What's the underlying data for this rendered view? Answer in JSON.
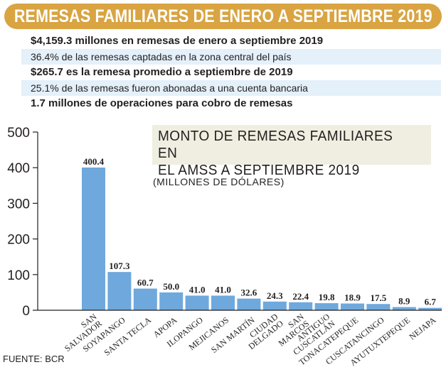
{
  "header": {
    "title": "REMESAS FAMILIARES DE ENERO A SEPTIEMBRE 2019",
    "facts": [
      {
        "text": "$4,159.3 millones en remesas de enero a septiembre 2019",
        "style": "bold"
      },
      {
        "text": "36.4% de las remesas captadas en la zona central del país",
        "style": "shaded"
      },
      {
        "text": "$265.7 es la remesa promedio a septiembre de 2019",
        "style": "bold"
      },
      {
        "text": "25.1% de las remesas fueron abonadas a una cuenta bancaria",
        "style": "shaded"
      },
      {
        "text": "1.7 millones de operaciones para cobro de remesas",
        "style": "bold"
      }
    ]
  },
  "chart_data": {
    "type": "bar",
    "title": "MONTO DE REMESAS FAMILIARES EN\nEL AMSS A SEPTIEMBRE 2019",
    "units": "(MILLONES DE DÓLARES)",
    "categories": [
      [
        "SAN",
        "SALVADOR"
      ],
      [
        "SOYAPANGO"
      ],
      [
        "SANTA TECLA"
      ],
      [
        "APOPA"
      ],
      [
        "ILOPANGO"
      ],
      [
        "MEJICANOS"
      ],
      [
        "SAN MARTÍN"
      ],
      [
        "CIUDAD",
        "DELGADO"
      ],
      [
        "SAN",
        "MARCOS"
      ],
      [
        "ANTIGUO",
        "CUSCATLÁN"
      ],
      [
        "TONACATEPEQUE"
      ],
      [
        "CUSCATANCINGO"
      ],
      [
        "AYUTUXTEPEQUE"
      ],
      [
        "NEJAPA"
      ]
    ],
    "values": [
      400.4,
      107.3,
      60.7,
      50.0,
      41.0,
      41.0,
      32.6,
      24.3,
      22.4,
      19.8,
      18.9,
      17.5,
      8.9,
      6.7
    ],
    "value_labels": [
      "400.4",
      "107.3",
      "60.7",
      "50.0",
      "41.0",
      "41.0",
      "32.6",
      "24.3",
      "22.4",
      "19.8",
      "18.9",
      "17.5",
      "8.9",
      "6.7"
    ],
    "ylim": [
      0,
      500
    ],
    "yticks": [
      "0",
      "100",
      "200",
      "300",
      "400",
      "500"
    ],
    "bar_color": "#6fa8dc",
    "grid": false,
    "legend": "none"
  },
  "source": "FUENTE: BCR"
}
